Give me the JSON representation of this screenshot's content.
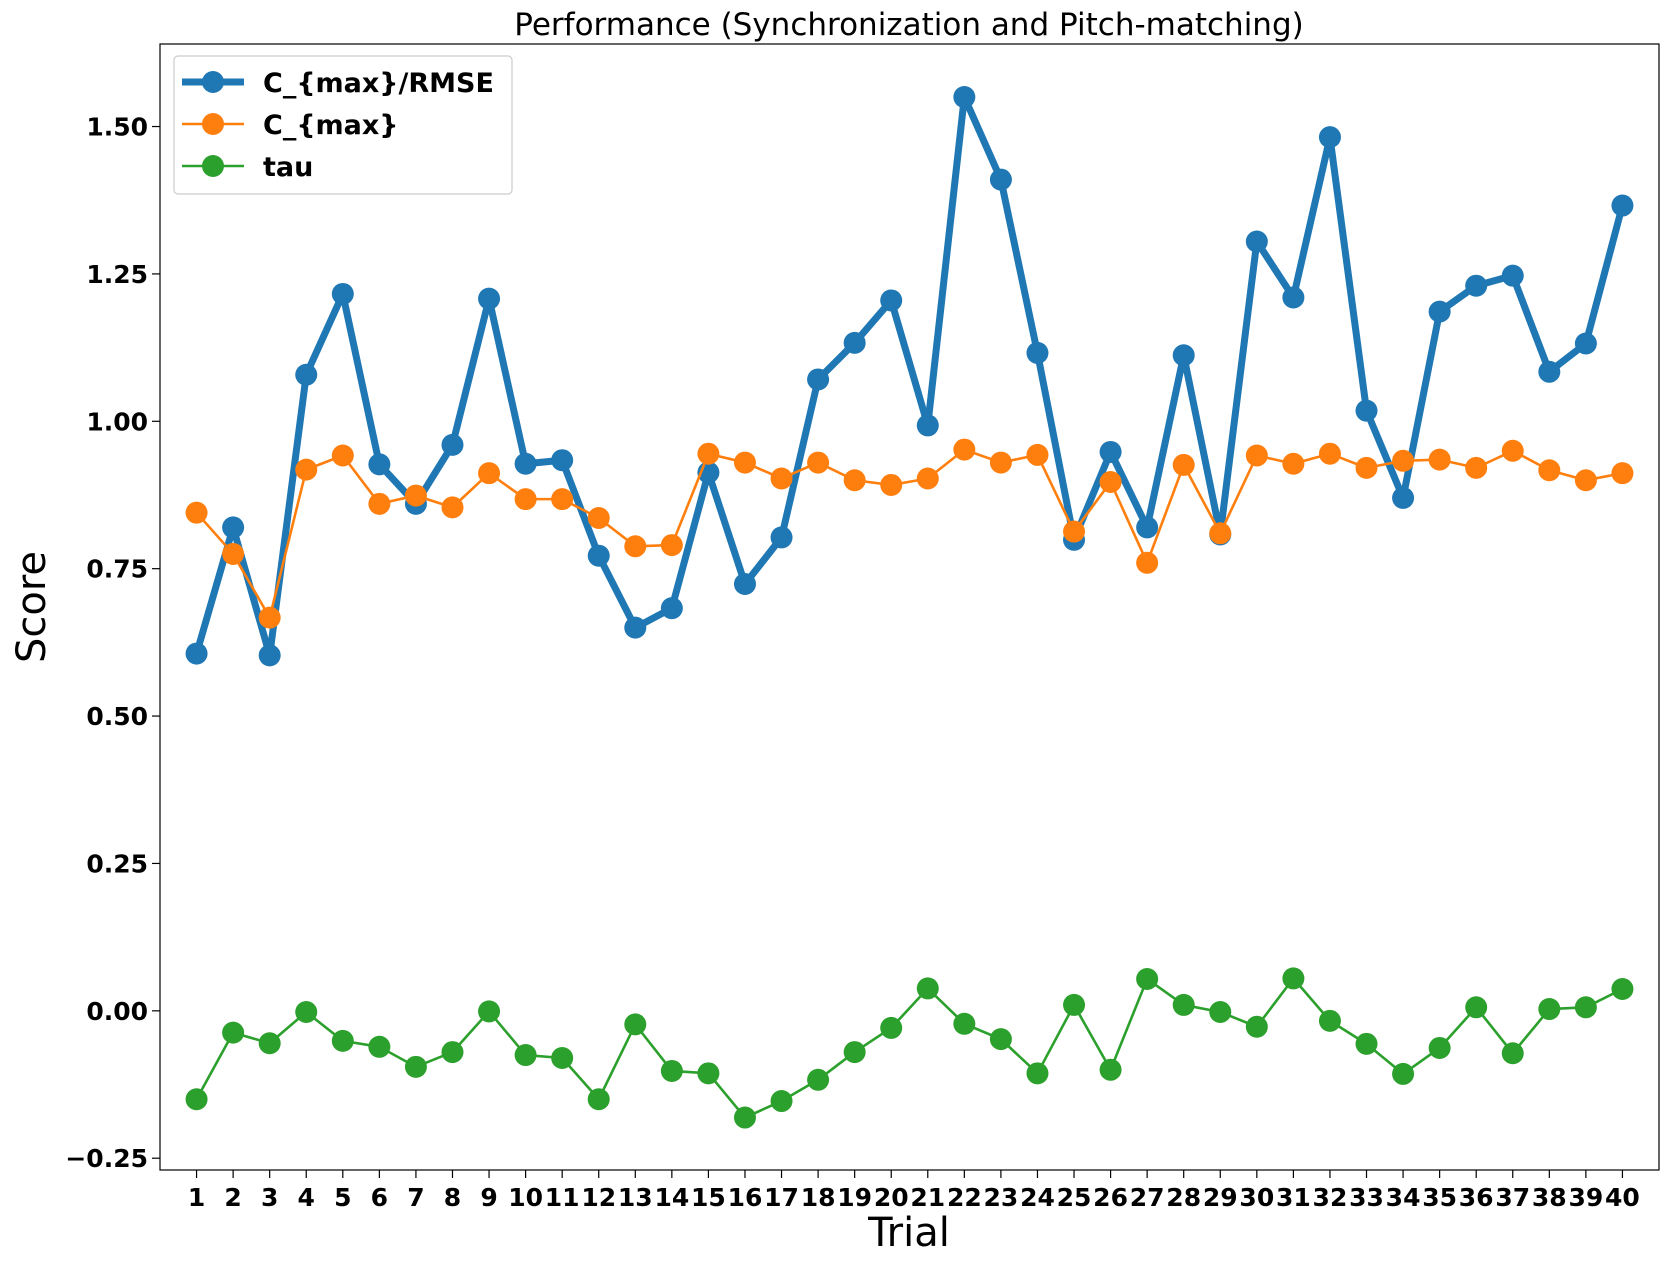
{
  "chart_data": {
    "type": "line",
    "title": "Performance (Synchronization and Pitch-matching)",
    "xlabel": "Trial",
    "ylabel": "Score",
    "ylim": [
      -0.27,
      1.64
    ],
    "xlim": [
      0,
      41
    ],
    "yticks": [
      -0.25,
      0.0,
      0.25,
      0.5,
      0.75,
      1.0,
      1.25,
      1.5
    ],
    "ytick_labels": [
      "−0.25",
      "0.00",
      "0.25",
      "0.50",
      "0.75",
      "1.00",
      "1.25",
      "1.50"
    ],
    "x": [
      1,
      2,
      3,
      4,
      5,
      6,
      7,
      8,
      9,
      10,
      11,
      12,
      13,
      14,
      15,
      16,
      17,
      18,
      19,
      20,
      21,
      22,
      23,
      24,
      25,
      26,
      27,
      28,
      29,
      30,
      31,
      32,
      33,
      34,
      35,
      36,
      37,
      38,
      39,
      40
    ],
    "xtick_labels": [
      "1",
      "2",
      "3",
      "4",
      "5",
      "6",
      "7",
      "8",
      "9",
      "10",
      "11",
      "12",
      "13",
      "14",
      "15",
      "16",
      "17",
      "18",
      "19",
      "20",
      "21",
      "22",
      "23",
      "24",
      "25",
      "26",
      "27",
      "28",
      "29",
      "30",
      "31",
      "32",
      "33",
      "34",
      "35",
      "36",
      "37",
      "38",
      "39",
      "40"
    ],
    "grid": false,
    "legend_position": "top-left",
    "series": [
      {
        "name": "C_{max}/RMSE",
        "color": "#1f77b4",
        "style": "thick",
        "values": [
          0.606,
          0.82,
          0.603,
          1.079,
          1.216,
          0.927,
          0.86,
          0.96,
          1.208,
          0.928,
          0.934,
          0.772,
          0.65,
          0.683,
          0.913,
          0.724,
          0.803,
          1.071,
          1.133,
          1.205,
          0.993,
          1.55,
          1.41,
          1.116,
          0.799,
          0.948,
          0.82,
          1.112,
          0.808,
          1.305,
          1.21,
          1.482,
          1.018,
          0.87,
          1.186,
          1.23,
          1.247,
          1.084,
          1.132,
          1.366
        ]
      },
      {
        "name": "C_{max}",
        "color": "#ff7f0e",
        "style": "thin",
        "values": [
          0.845,
          0.775,
          0.667,
          0.918,
          0.942,
          0.86,
          0.874,
          0.854,
          0.912,
          0.868,
          0.868,
          0.836,
          0.788,
          0.79,
          0.945,
          0.93,
          0.903,
          0.93,
          0.9,
          0.892,
          0.903,
          0.952,
          0.93,
          0.943,
          0.813,
          0.897,
          0.76,
          0.926,
          0.81,
          0.942,
          0.928,
          0.945,
          0.921,
          0.933,
          0.935,
          0.921,
          0.95,
          0.917,
          0.9,
          0.912
        ]
      },
      {
        "name": "tau",
        "color": "#2ca02c",
        "style": "thin",
        "values": [
          -0.15,
          -0.037,
          -0.055,
          -0.002,
          -0.051,
          -0.061,
          -0.095,
          -0.07,
          -0.001,
          -0.075,
          -0.08,
          -0.15,
          -0.023,
          -0.102,
          -0.106,
          -0.181,
          -0.153,
          -0.117,
          -0.07,
          -0.029,
          0.038,
          -0.022,
          -0.048,
          -0.106,
          0.01,
          -0.1,
          0.054,
          0.01,
          -0.002,
          -0.027,
          0.055,
          -0.017,
          -0.056,
          -0.107,
          -0.063,
          0.006,
          -0.072,
          0.003,
          0.006,
          0.037
        ]
      }
    ]
  }
}
